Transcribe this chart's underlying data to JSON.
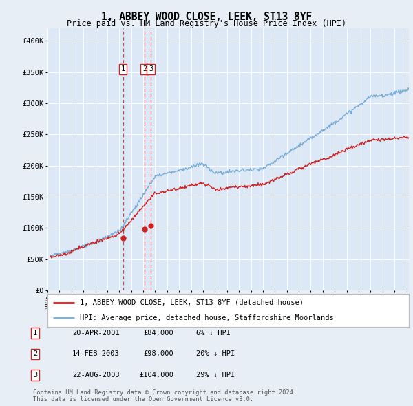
{
  "title": "1, ABBEY WOOD CLOSE, LEEK, ST13 8YF",
  "subtitle": "Price paid vs. HM Land Registry's House Price Index (HPI)",
  "ylabel_ticks": [
    "£0",
    "£50K",
    "£100K",
    "£150K",
    "£200K",
    "£250K",
    "£300K",
    "£350K",
    "£400K"
  ],
  "ytick_values": [
    0,
    50000,
    100000,
    150000,
    200000,
    250000,
    300000,
    350000,
    400000
  ],
  "ylim": [
    0,
    420000
  ],
  "xlim_start": 1995.25,
  "xlim_end": 2025.2,
  "hpi_color": "#7aaed6",
  "price_color": "#cc2222",
  "vline_color": "#cc2222",
  "transaction_color": "#cc2222",
  "transactions": [
    {
      "label": "1",
      "date_num": 2001.3,
      "price": 84000,
      "date_str": "20-APR-2001",
      "price_str": "£84,000",
      "hpi_str": "6% ↓ HPI"
    },
    {
      "label": "2",
      "date_num": 2003.12,
      "price": 98000,
      "date_str": "14-FEB-2003",
      "price_str": "£98,000",
      "hpi_str": "20% ↓ HPI"
    },
    {
      "label": "3",
      "date_num": 2003.64,
      "price": 104000,
      "date_str": "22-AUG-2003",
      "price_str": "£104,000",
      "hpi_str": "29% ↓ HPI"
    }
  ],
  "legend_line1": "1, ABBEY WOOD CLOSE, LEEK, ST13 8YF (detached house)",
  "legend_line2": "HPI: Average price, detached house, Staffordshire Moorlands",
  "footnote": "Contains HM Land Registry data © Crown copyright and database right 2024.\nThis data is licensed under the Open Government Licence v3.0.",
  "background_color": "#e8eef5",
  "plot_bg_color": "#dce8f5"
}
